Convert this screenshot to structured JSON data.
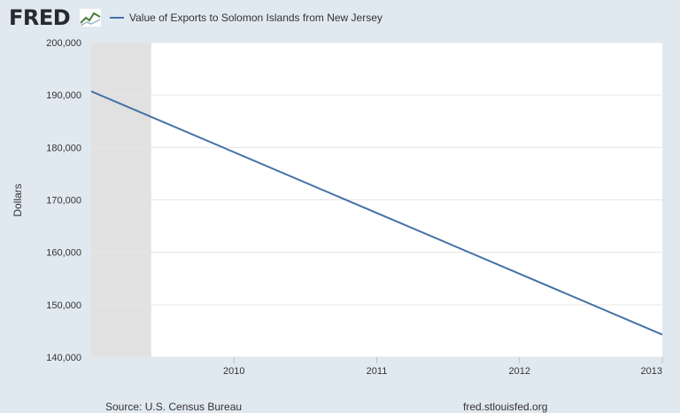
{
  "header": {
    "logo_text": "FRED",
    "legend_label": "Value of Exports to Solomon Islands from New Jersey",
    "series_color": "#4572a7"
  },
  "footer": {
    "source": "Source: U.S. Census Bureau",
    "site": "fred.stlouisfed.org"
  },
  "chart_data": {
    "type": "line",
    "title": "Value of Exports to Solomon Islands from New Jersey",
    "xlabel": "",
    "ylabel": "Dollars",
    "xlim": [
      2009.0,
      2013.0
    ],
    "ylim": [
      140000,
      200000
    ],
    "yticks": [
      140000,
      150000,
      160000,
      170000,
      180000,
      190000,
      200000
    ],
    "ytick_labels": [
      "140,000",
      "150,000",
      "160,000",
      "170,000",
      "180,000",
      "190,000",
      "200,000"
    ],
    "xticks": [
      2010,
      2011,
      2012,
      2013
    ],
    "xtick_labels": [
      "2010",
      "2011",
      "2012",
      "2013"
    ],
    "recession_shading": [
      [
        2009.0,
        2009.42
      ]
    ],
    "series": [
      {
        "name": "Value of Exports to Solomon Islands from New Jersey",
        "x": [
          2009.0,
          2013.0
        ],
        "y": [
          190700,
          144300
        ]
      }
    ],
    "grid": true,
    "legend": "top-left"
  }
}
